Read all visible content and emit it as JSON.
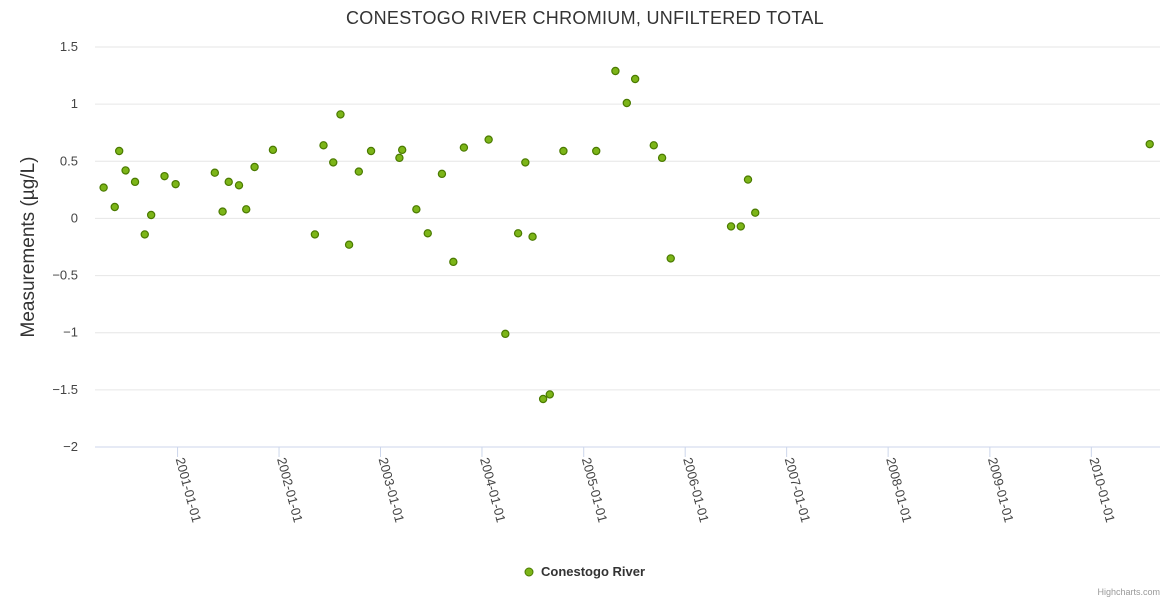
{
  "chart_data": {
    "type": "scatter",
    "title": "CONESTOGO RIVER CHROMIUM, UNFILTERED TOTAL",
    "xlabel": "",
    "ylabel": "Measurements (µg/L)",
    "xlim": [
      "2000-03-10",
      "2010-09-05"
    ],
    "ylim": [
      -2,
      1.5
    ],
    "y_ticks": [
      -2,
      -1.5,
      -1,
      -0.5,
      0,
      0.5,
      1,
      1.5
    ],
    "y_tick_labels": [
      "−2",
      "−1.5",
      "−1",
      "−0.5",
      "0",
      "0.5",
      "1",
      "1.5"
    ],
    "x_ticks": [
      "2001-01-01",
      "2002-01-01",
      "2003-01-01",
      "2004-01-01",
      "2005-01-01",
      "2006-01-01",
      "2007-01-01",
      "2008-01-01",
      "2009-01-01",
      "2010-01-01"
    ],
    "grid": true,
    "legend_position": "bottom-center",
    "series": [
      {
        "name": "Conestogo River",
        "color": "#7cb518",
        "border_color": "#4a7a00",
        "points": [
          {
            "x": "2000-04-10",
            "y": 0.27
          },
          {
            "x": "2000-05-20",
            "y": 0.1
          },
          {
            "x": "2000-06-05",
            "y": 0.59
          },
          {
            "x": "2000-06-28",
            "y": 0.42
          },
          {
            "x": "2000-08-01",
            "y": 0.32
          },
          {
            "x": "2000-09-05",
            "y": -0.14
          },
          {
            "x": "2000-09-28",
            "y": 0.03
          },
          {
            "x": "2000-11-15",
            "y": 0.37
          },
          {
            "x": "2000-12-25",
            "y": 0.3
          },
          {
            "x": "2001-05-15",
            "y": 0.4
          },
          {
            "x": "2001-06-12",
            "y": 0.06
          },
          {
            "x": "2001-07-04",
            "y": 0.32
          },
          {
            "x": "2001-08-10",
            "y": 0.29
          },
          {
            "x": "2001-09-05",
            "y": 0.08
          },
          {
            "x": "2001-10-05",
            "y": 0.45
          },
          {
            "x": "2001-12-10",
            "y": 0.6
          },
          {
            "x": "2002-05-10",
            "y": -0.14
          },
          {
            "x": "2002-06-10",
            "y": 0.64
          },
          {
            "x": "2002-07-15",
            "y": 0.49
          },
          {
            "x": "2002-08-10",
            "y": 0.91
          },
          {
            "x": "2002-09-10",
            "y": -0.23
          },
          {
            "x": "2002-10-15",
            "y": 0.41
          },
          {
            "x": "2002-11-28",
            "y": 0.59
          },
          {
            "x": "2003-03-10",
            "y": 0.53
          },
          {
            "x": "2003-03-20",
            "y": 0.6
          },
          {
            "x": "2003-05-10",
            "y": 0.08
          },
          {
            "x": "2003-06-20",
            "y": -0.13
          },
          {
            "x": "2003-08-10",
            "y": 0.39
          },
          {
            "x": "2003-09-20",
            "y": -0.38
          },
          {
            "x": "2003-10-28",
            "y": 0.62
          },
          {
            "x": "2004-01-25",
            "y": 0.69
          },
          {
            "x": "2004-03-25",
            "y": -1.01
          },
          {
            "x": "2004-05-10",
            "y": -0.13
          },
          {
            "x": "2004-06-05",
            "y": 0.49
          },
          {
            "x": "2004-07-01",
            "y": -0.16
          },
          {
            "x": "2004-08-08",
            "y": -1.58
          },
          {
            "x": "2004-09-01",
            "y": -1.54
          },
          {
            "x": "2004-10-20",
            "y": 0.59
          },
          {
            "x": "2005-02-15",
            "y": 0.59
          },
          {
            "x": "2005-04-25",
            "y": 1.29
          },
          {
            "x": "2005-06-05",
            "y": 1.01
          },
          {
            "x": "2005-07-05",
            "y": 1.22
          },
          {
            "x": "2005-09-10",
            "y": 0.64
          },
          {
            "x": "2005-10-10",
            "y": 0.53
          },
          {
            "x": "2005-11-10",
            "y": -0.35
          },
          {
            "x": "2006-06-15",
            "y": -0.07
          },
          {
            "x": "2006-07-20",
            "y": -0.07
          },
          {
            "x": "2006-08-15",
            "y": 0.34
          },
          {
            "x": "2006-09-10",
            "y": 0.05
          },
          {
            "x": "2010-07-30",
            "y": 0.65
          }
        ]
      }
    ],
    "credit": "Highcharts.com"
  }
}
